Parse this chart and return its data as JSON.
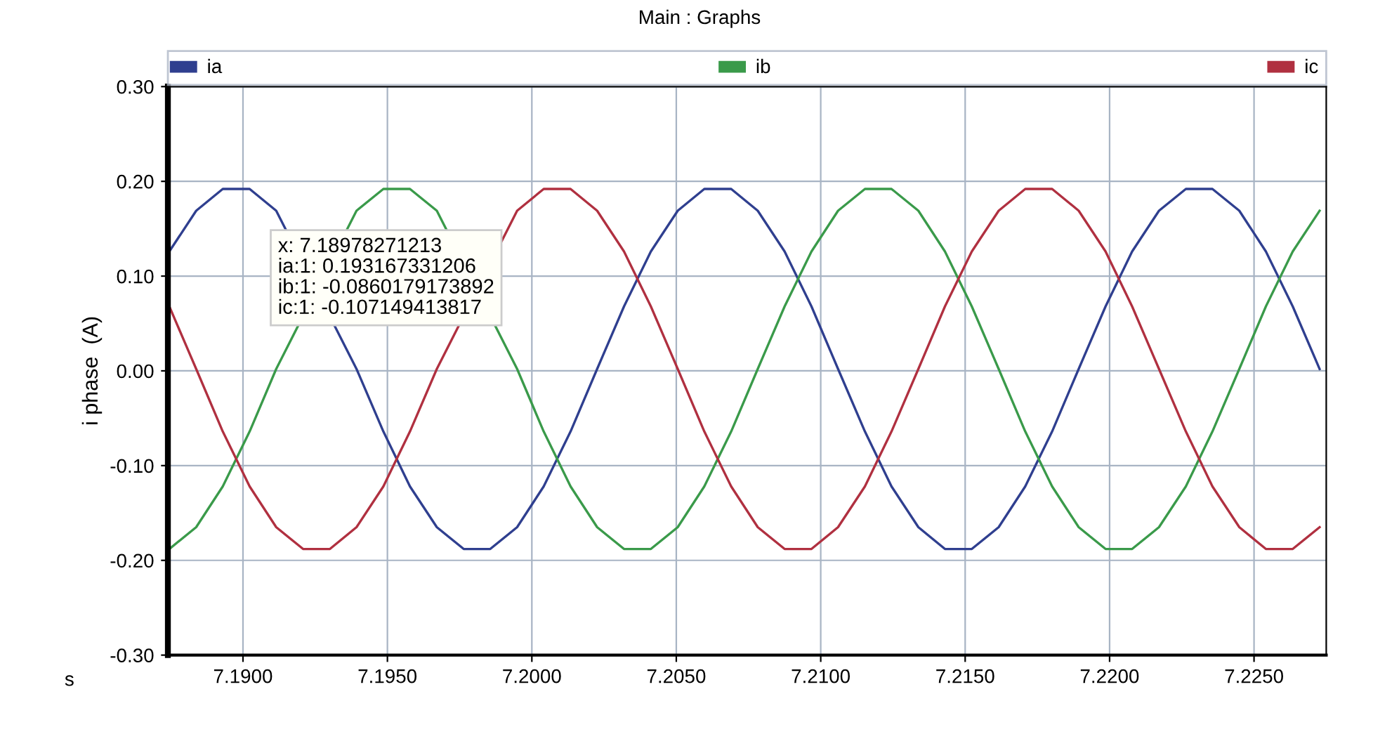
{
  "chart_data": {
    "type": "line",
    "title": "Main : Graphs",
    "xlabel": "s",
    "ylabel": "i phase  (A)",
    "annotations": [
      "x: 7.18978271213\nia:1: 0.193167331206\nib:1: -0.0860179173892\nic:1: -0.107149413817"
    ],
    "x": [
      7.18745,
      7.18838,
      7.1893,
      7.19023,
      7.19115,
      7.19208,
      7.19301,
      7.19393,
      7.19486,
      7.19578,
      7.19671,
      7.19764,
      7.19856,
      7.19949,
      7.20041,
      7.20134,
      7.20226,
      7.20319,
      7.20412,
      7.20505,
      7.20597,
      7.2069,
      7.20782,
      7.20875,
      7.20968,
      7.2106,
      7.21153,
      7.21245,
      7.21338,
      7.2143,
      7.21523,
      7.21616,
      7.21708,
      7.21801,
      7.21893,
      7.21986,
      7.22078,
      7.22171,
      7.22264,
      7.22356,
      7.22449,
      7.22541,
      7.22634,
      7.22727
    ],
    "series": [
      {
        "name": "ia",
        "color": "#2f3f8f",
        "values": [
          0.126,
          0.169,
          0.192,
          0.192,
          0.169,
          null,
          null,
          0.002,
          -0.064,
          -0.122,
          -0.165,
          -0.188,
          -0.188,
          -0.165,
          -0.122,
          -0.064,
          0.002,
          0.068,
          0.126,
          0.169,
          0.192,
          0.192,
          0.169,
          0.126,
          0.068,
          0.002,
          -0.064,
          -0.122,
          -0.165,
          -0.188,
          -0.188,
          -0.165,
          -0.122,
          -0.064,
          0.002,
          0.068,
          0.126,
          0.169,
          0.192,
          0.192,
          0.169,
          0.126,
          0.068,
          0.002
        ]
      },
      {
        "name": "ib",
        "color": "#3a9a4a",
        "values": [
          -0.188,
          -0.165,
          -0.122,
          -0.064,
          0.002,
          null,
          null,
          0.169,
          0.192,
          0.192,
          0.169,
          null,
          null,
          0.002,
          -0.064,
          -0.122,
          -0.165,
          -0.188,
          -0.188,
          -0.165,
          -0.122,
          -0.064,
          0.002,
          0.068,
          0.126,
          0.169,
          0.192,
          0.192,
          0.169,
          0.126,
          0.068,
          0.002,
          -0.064,
          -0.122,
          -0.165,
          -0.188,
          -0.188,
          -0.165,
          -0.122,
          -0.064,
          0.002,
          0.068,
          0.126,
          0.169
        ]
      },
      {
        "name": "ic",
        "color": "#b03040",
        "values": [
          0.068,
          0.002,
          -0.064,
          -0.122,
          -0.165,
          -0.188,
          -0.188,
          -0.165,
          -0.122,
          -0.064,
          0.002,
          null,
          null,
          0.169,
          0.192,
          0.192,
          0.169,
          0.126,
          0.068,
          0.002,
          -0.064,
          -0.122,
          -0.165,
          -0.188,
          -0.188,
          -0.165,
          -0.122,
          -0.064,
          0.002,
          0.068,
          0.126,
          0.169,
          0.192,
          0.192,
          0.169,
          0.126,
          0.068,
          0.002,
          -0.064,
          -0.122,
          -0.165,
          -0.188,
          -0.188,
          -0.165
        ]
      }
    ],
    "xlim": [
      7.1874,
      7.2275
    ],
    "xticks": [
      {
        "value": 7.19,
        "label": "7.1900"
      },
      {
        "value": 7.195,
        "label": "7.1950"
      },
      {
        "value": 7.2,
        "label": "7.2000"
      },
      {
        "value": 7.205,
        "label": "7.2050"
      },
      {
        "value": 7.21,
        "label": "7.2100"
      },
      {
        "value": 7.215,
        "label": "7.2150"
      },
      {
        "value": 7.22,
        "label": "7.2200"
      },
      {
        "value": 7.225,
        "label": "7.2250"
      }
    ],
    "ylim": [
      -0.3,
      0.3
    ],
    "yticks": [
      {
        "value": 0.3,
        "label": "0.30"
      },
      {
        "value": 0.2,
        "label": "0.20"
      },
      {
        "value": 0.1,
        "label": "0.10"
      },
      {
        "value": 0.0,
        "label": "0.00"
      },
      {
        "value": -0.1,
        "label": "-0.10"
      },
      {
        "value": -0.2,
        "label": "-0.20"
      },
      {
        "value": -0.3,
        "label": "-0.30"
      }
    ],
    "grid": true,
    "legend": "top",
    "marker": "none",
    "line_style": "solid"
  }
}
